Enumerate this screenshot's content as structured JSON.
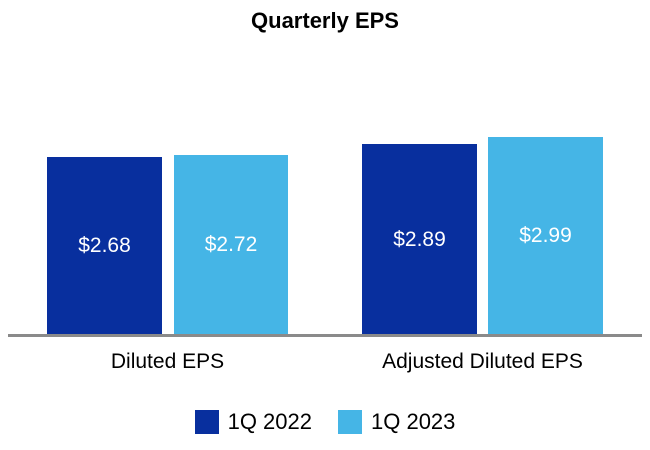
{
  "chart_data": {
    "type": "bar",
    "title": "Quarterly EPS",
    "categories": [
      "Diluted EPS",
      "Adjusted Diluted EPS"
    ],
    "series": [
      {
        "name": "1Q 2022",
        "color": "#082F9E",
        "values": [
          2.68,
          2.89
        ],
        "value_labels": [
          "$2.68",
          "$2.89"
        ]
      },
      {
        "name": "1Q 2023",
        "color": "#45B5E6",
        "values": [
          2.72,
          2.99
        ],
        "value_labels": [
          "$2.72",
          "$2.99"
        ]
      }
    ],
    "ylim": [
      0,
      3.2
    ],
    "grid": false,
    "y_axis_shown": false,
    "legend_position": "bottom",
    "value_label_position": "inside-center",
    "value_label_color": "#FFFFFF",
    "axis_line_color": "#8A8A8A",
    "background_color": "#FFFFFF"
  }
}
